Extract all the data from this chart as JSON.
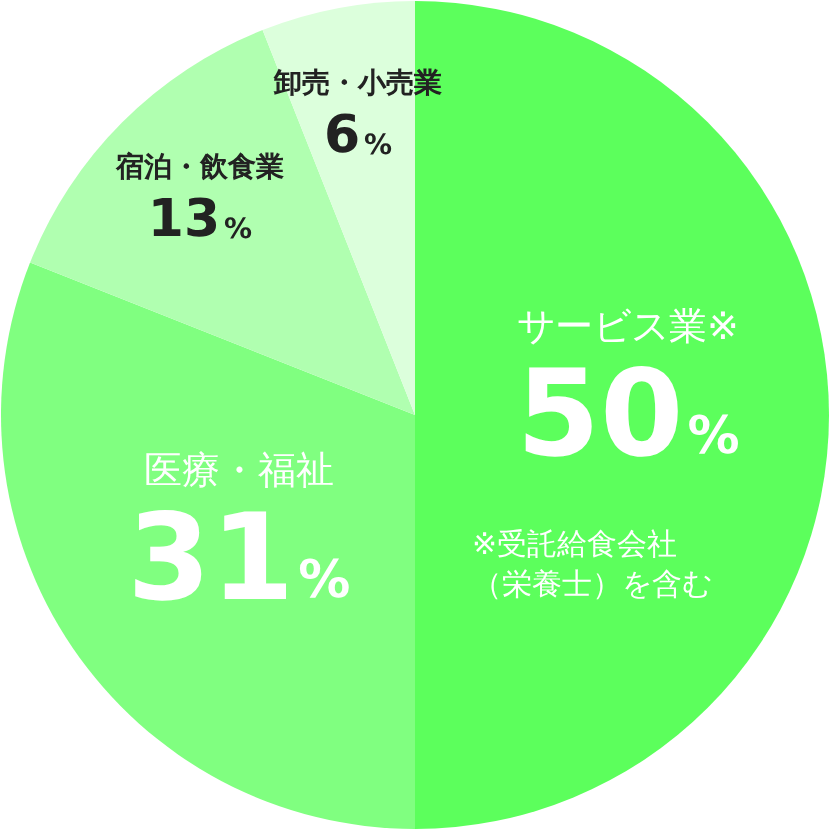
{
  "chart_data": {
    "type": "pie",
    "categories": [
      "サービス業※",
      "医療・福祉",
      "宿泊・飲食業",
      "卸売・小売業"
    ],
    "values": [
      50,
      31,
      13,
      6
    ],
    "colors": [
      "#5cff5c",
      "#80ff80",
      "#b0ffb0",
      "#dcffdc"
    ],
    "value_labels": [
      "50%",
      "31%",
      "13%",
      "6%"
    ],
    "annotations": [
      "※受託給食会社（栄養士）を含む"
    ]
  }
}
